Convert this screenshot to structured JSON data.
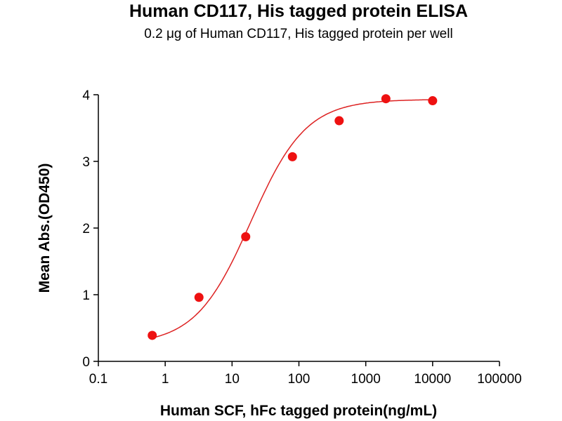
{
  "chart_data": {
    "type": "scatter",
    "title": "Human CD117, His tagged protein ELISA",
    "subtitle": "0.2 μg of Human CD117, His tagged protein per well",
    "xlabel": "Human SCF, hFc tagged protein(ng/mL)",
    "ylabel": "Mean Abs.(OD450)",
    "xscale": "log",
    "xlim": [
      0.1,
      100000
    ],
    "ylim": [
      0,
      4
    ],
    "xticks": [
      "0.1",
      "1",
      "10",
      "100",
      "1000",
      "10000",
      "100000"
    ],
    "yticks": [
      "0",
      "1",
      "2",
      "3",
      "4"
    ],
    "grid": false,
    "colors": {
      "points": "#ee1111",
      "curve": "#dd2222",
      "axes": "#000000"
    },
    "series": [
      {
        "x": [
          0.64,
          3.2,
          16,
          80,
          400,
          2000,
          10000
        ],
        "y": [
          0.39,
          0.96,
          1.87,
          3.07,
          3.61,
          3.94,
          3.91
        ]
      }
    ]
  }
}
